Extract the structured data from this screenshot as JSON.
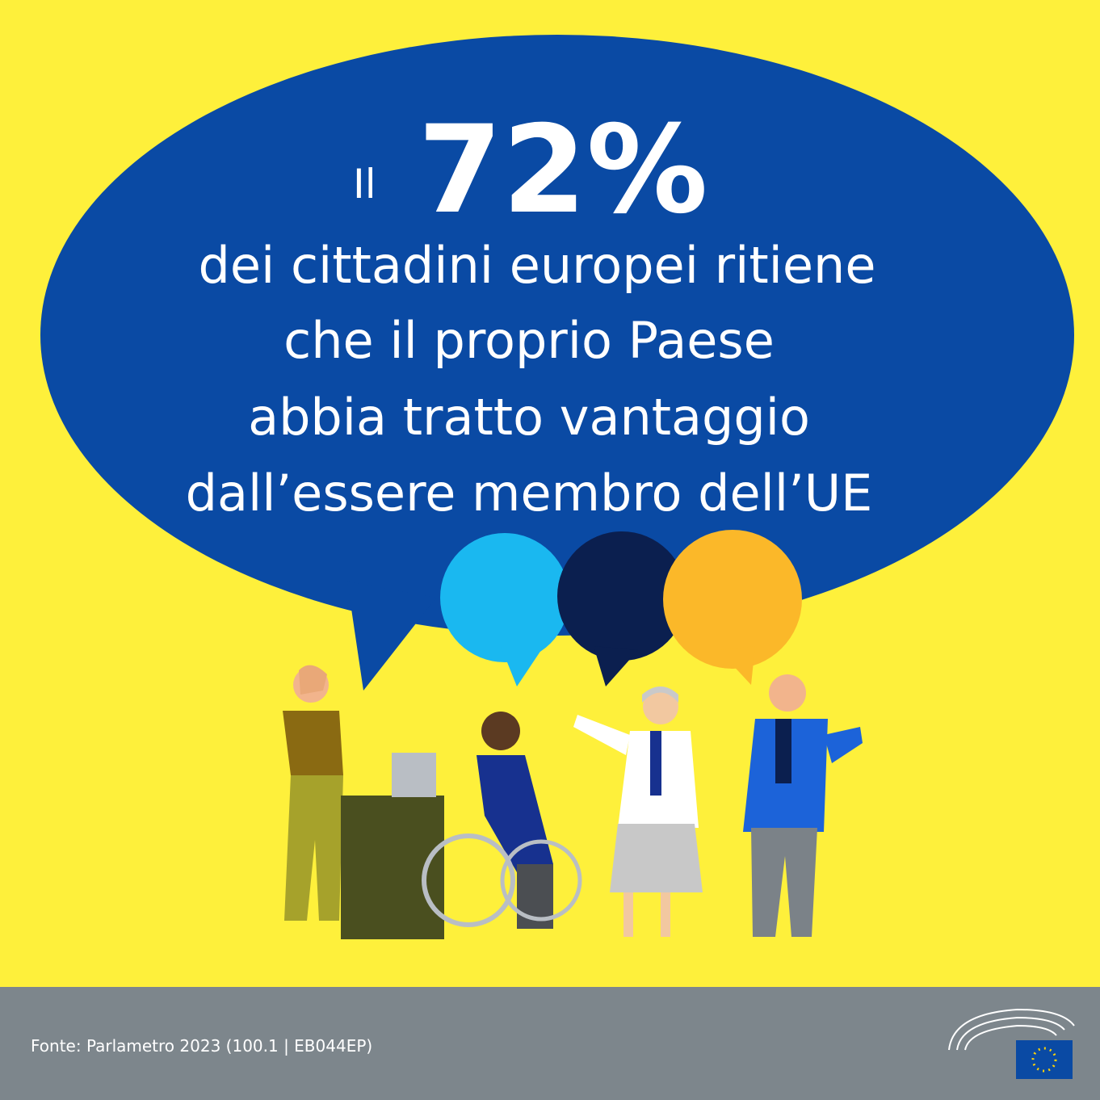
{
  "headline": {
    "prefix": "Il",
    "figure": "72%",
    "lines": [
      "dei cittadini europei ritiene",
      "che il proprio Paese",
      "abbia tratto vantaggio",
      "dall’essere membro dell’UE"
    ]
  },
  "footer": {
    "source": "Fonte: Parlametro 2023 (100.1 | EB044EP)"
  }
}
